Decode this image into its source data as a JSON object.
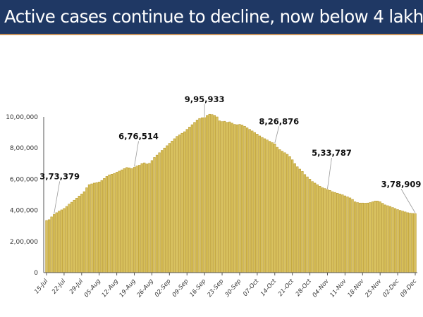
{
  "header": {
    "title": "Active cases continue to decline, now below 4 lakhs"
  },
  "colors": {
    "title_bg": "#1f3864",
    "title_text": "#ffffff",
    "bar": "#d9c25e",
    "bar_edge": "#b8982c"
  },
  "chart_data": {
    "type": "bar",
    "title": "Active cases continue to decline, now below 4 lakhs",
    "xlabel": "",
    "ylabel": "",
    "ylim": [
      0,
      1000000
    ],
    "grid": false,
    "y_tick_values": [
      0,
      200000,
      400000,
      600000,
      800000,
      1000000
    ],
    "y_tick_labels": [
      "0",
      "2,00,000",
      "4,00,000",
      "6,00,000",
      "8,00,000",
      "10,00,000"
    ],
    "x_start": "15-Jul",
    "x_end": "09-Dec",
    "x_tick_labels": [
      "15-Jul",
      "22-Jul",
      "29-Jul",
      "05-Aug",
      "12-Aug",
      "19-Aug",
      "26-Aug",
      "02-Sep",
      "09-Sep",
      "16-Sep",
      "23-Sep",
      "30-Sep",
      "07-Oct",
      "14-Oct",
      "21-Oct",
      "28-Oct",
      "04-Nov",
      "11-Nov",
      "18-Nov",
      "25-Nov",
      "02-Dec",
      "09-Dec"
    ],
    "values": [
      335000,
      340000,
      358000,
      373379,
      385000,
      395000,
      403000,
      412000,
      425000,
      440000,
      452000,
      465000,
      478000,
      492000,
      505000,
      520000,
      545000,
      565000,
      570000,
      575000,
      578000,
      582000,
      592000,
      605000,
      618000,
      628000,
      632000,
      637000,
      645000,
      652000,
      660000,
      668000,
      675000,
      673000,
      668000,
      676514,
      685000,
      690000,
      700000,
      705000,
      698000,
      702000,
      720000,
      740000,
      755000,
      770000,
      785000,
      800000,
      815000,
      830000,
      845000,
      860000,
      875000,
      885000,
      895000,
      905000,
      920000,
      935000,
      950000,
      965000,
      980000,
      990000,
      995000,
      995933,
      1010000,
      1017000,
      1015000,
      1010000,
      1000000,
      975000,
      970000,
      972000,
      965000,
      968000,
      960000,
      952000,
      950000,
      952000,
      948000,
      940000,
      930000,
      920000,
      910000,
      900000,
      890000,
      878000,
      868000,
      860000,
      852000,
      843000,
      835000,
      826876,
      805000,
      790000,
      780000,
      770000,
      760000,
      745000,
      725000,
      700000,
      680000,
      665000,
      650000,
      630000,
      615000,
      600000,
      585000,
      575000,
      565000,
      555000,
      545000,
      540000,
      533787,
      528000,
      520000,
      515000,
      510000,
      505000,
      500000,
      493000,
      487000,
      480000,
      470000,
      455000,
      450000,
      447000,
      447000,
      446000,
      447000,
      450000,
      455000,
      460000,
      460000,
      455000,
      445000,
      435000,
      430000,
      425000,
      418000,
      412000,
      405000,
      400000,
      395000,
      390000,
      385000,
      382000,
      380000,
      378909
    ],
    "annotations": [
      {
        "date": "18-Jul",
        "value": 373379,
        "label": "3,73,379"
      },
      {
        "date": "19-Aug",
        "value": 676514,
        "label": "6,76,514"
      },
      {
        "date": "16-Sep",
        "value": 995933,
        "label": "9,95,933"
      },
      {
        "date": "14-Oct",
        "value": 826876,
        "label": "8,26,876"
      },
      {
        "date": "04-Nov",
        "value": 533787,
        "label": "5,33,787"
      },
      {
        "date": "09-Dec",
        "value": 378909,
        "label": "3,78,909"
      }
    ]
  }
}
